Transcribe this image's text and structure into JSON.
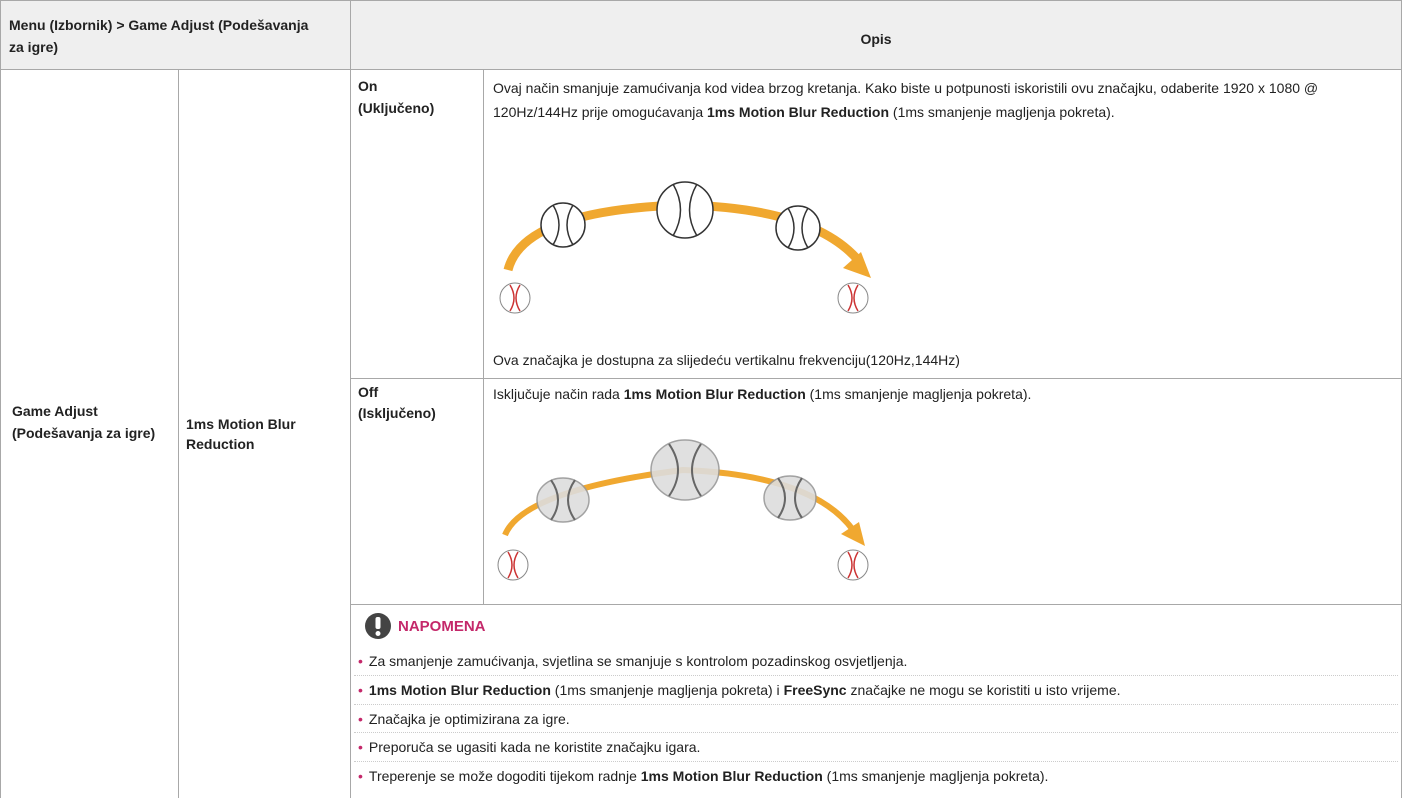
{
  "header": {
    "menu_path": "Menu (Izbornik) > Game Adjust (Podešavanja za igre)",
    "description": "Opis"
  },
  "menu": "Game Adjust (Podešavanja za igre)",
  "submenu": "1ms Motion Blur Reduction",
  "options": [
    {
      "label": "On",
      "sublabel": "(Uključeno)",
      "description": [
        {
          "text": "Ovaj način smanjuje zamućivanja kod videa brzog kretanja. Kako biste u potpunosti iskoristili ovu značajku, odaberite 1920 x 1080 @ 120Hz/144Hz prije omogućavanja ",
          "bold": false
        },
        {
          "text": "1ms Motion Blur Reduction",
          "bold": true
        },
        {
          "text": " (1ms smanjenje magljenja pokreta).",
          "bold": false
        }
      ],
      "footnote": "Ova značajka je dostupna za slijedeću vertikalnu frekvenciju(120Hz,144Hz)"
    },
    {
      "label": "Off",
      "sublabel": "(Isključeno)",
      "description": [
        {
          "text": "Isključuje način rada ",
          "bold": false
        },
        {
          "text": "1ms Motion Blur Reduction",
          "bold": true
        },
        {
          "text": " (1ms smanjenje magljenja pokreta).",
          "bold": false
        }
      ]
    }
  ],
  "note": {
    "title": "NAPOMENA",
    "items": [
      [
        {
          "text": "Za smanjenje zamućivanja, svjetlina se smanjuje s kontrolom pozadinskog osvjetljenja.",
          "bold": false
        }
      ],
      [
        {
          "text": "1ms Motion Blur Reduction",
          "bold": true
        },
        {
          "text": " (1ms smanjenje magljenja pokreta) i ",
          "bold": false
        },
        {
          "text": "FreeSync",
          "bold": true
        },
        {
          "text": " značajke ne mogu se koristiti u isto vrijeme.",
          "bold": false
        }
      ],
      [
        {
          "text": "Značajka je optimizirana za igre.",
          "bold": false
        }
      ],
      [
        {
          "text": "Preporuča se ugasiti kada ne koristite značajku igara.",
          "bold": false
        }
      ],
      [
        {
          "text": "Treperenje se može dogoditi tijekom radnje ",
          "bold": false
        },
        {
          "text": "1ms Motion Blur Reduction",
          "bold": true
        },
        {
          "text": " (1ms smanjenje magljenja pokreta).",
          "bold": false
        }
      ]
    ]
  }
}
